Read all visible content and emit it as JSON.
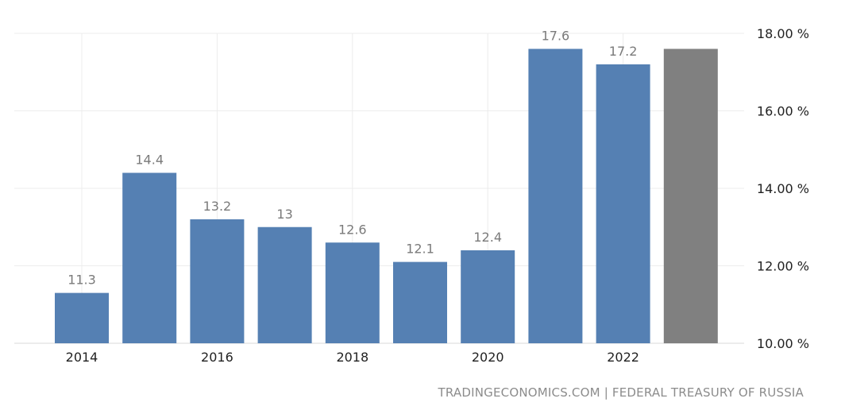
{
  "chart_data": {
    "type": "bar",
    "title": "",
    "xlabel": "",
    "ylabel": "",
    "categories": [
      "2014",
      "2015",
      "2016",
      "2017",
      "2018",
      "2019",
      "2020",
      "2021",
      "2022",
      "2023"
    ],
    "values": [
      11.3,
      14.4,
      13.2,
      13.0,
      12.6,
      12.1,
      12.4,
      17.6,
      17.2,
      17.6
    ],
    "data_labels": [
      "11.3",
      "14.4",
      "13.2",
      "13",
      "12.6",
      "12.1",
      "12.4",
      "17.6",
      "17.2",
      ""
    ],
    "x_tick_labels": [
      "2014",
      "2016",
      "2018",
      "2020",
      "2022"
    ],
    "y_tick_values": [
      10,
      12,
      14,
      16,
      18
    ],
    "y_tick_labels": [
      "10.00 %",
      "12.00 %",
      "14.00 %",
      "16.00 %",
      "18.00 %"
    ],
    "ylim": [
      10,
      18
    ],
    "y_axis_side": "right",
    "grid": true,
    "legend": "none",
    "bar_color": "#5580b3",
    "forecast_bar_color": "#808080",
    "forecast_categories": [
      "2023"
    ]
  },
  "footer": {
    "source_text": "TRADINGECONOMICS.COM | FEDERAL TREASURY OF RUSSIA"
  }
}
